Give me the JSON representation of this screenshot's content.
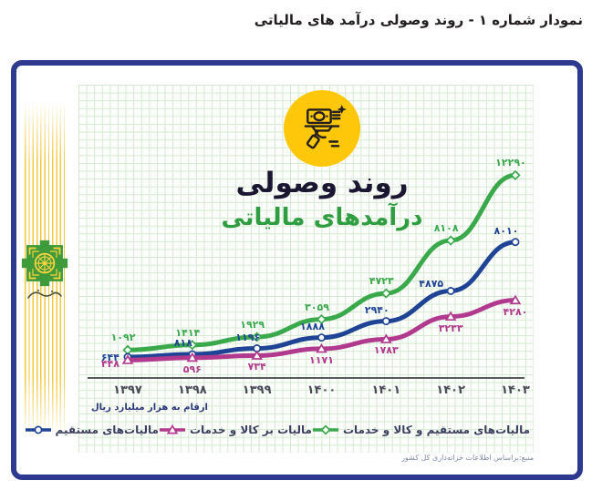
{
  "page": {
    "title": "نمودار شماره ۱ - روند وصولی درآمد های مالیاتی"
  },
  "infographic": {
    "heading_line1": "روند وصولی",
    "heading_line2": "درآمدهای مالیاتی",
    "badge_icon": "money-on-hand-icon",
    "emblem_icon": "tax-administration-emblem",
    "colors": {
      "frame": "#2d3a8f",
      "badge": "#ffc709",
      "total_series": "#3aa94c",
      "direct_series": "#1f4496",
      "goods_series": "#b13a8e"
    }
  },
  "chart_data": {
    "type": "line",
    "title": "روند وصولی درآمدهای مالیاتی",
    "xlabel": "",
    "ylabel": "",
    "ylim": [
      0,
      13000
    ],
    "grid": true,
    "legend_position": "bottom",
    "x_years": [
      1397,
      1398,
      1399,
      1400,
      1401,
      1402,
      1403
    ],
    "x_labels": [
      "۱۳۹۷",
      "۱۳۹۸",
      "۱۳۹۹",
      "۱۴۰۰",
      "۱۴۰۱",
      "۱۴۰۲",
      "۱۴۰۳"
    ],
    "series": [
      {
        "name": "مالیات‌های مستقیم و کالا و خدمات",
        "color": "#3aa94c",
        "marker": "diamond",
        "values": [
          1092,
          1414,
          1929,
          3059,
          4723,
          8108,
          12290
        ],
        "point_labels": [
          "۱۰۹۲",
          "۱۴۱۴",
          "۱۹۲۹",
          "۳۰۵۹",
          "۴۷۲۳",
          "۸۱۰۸",
          "۱۲۲۹۰"
        ]
      },
      {
        "name": "مالیات‌های مستقیم",
        "color": "#1f4496",
        "marker": "circle",
        "values": [
          644,
          818,
          1196,
          1888,
          2940,
          4875,
          8010
        ],
        "point_labels": [
          "۶۴۴",
          "۸۱۸",
          "۱۱۹۶",
          "۱۸۸۸",
          "۲۹۴۰",
          "۴۸۷۵",
          "۸۰۱۰"
        ]
      },
      {
        "name": "مالیات بر کالا و خدمات",
        "color": "#b13a8e",
        "marker": "triangle",
        "values": [
          448,
          596,
          734,
          1171,
          1783,
          3233,
          4280
        ],
        "point_labels": [
          "۴۴۸",
          "۵۹۶",
          "۷۳۴",
          "۱۱۷۱",
          "۱۷۸۳",
          "۳۲۳۳",
          "۴۲۸۰"
        ]
      }
    ],
    "unit_note": "ارقام به هزار میلیارد ریال",
    "source": "منبع:براساس اطلاعات خزانه‌داری کل کشور"
  }
}
